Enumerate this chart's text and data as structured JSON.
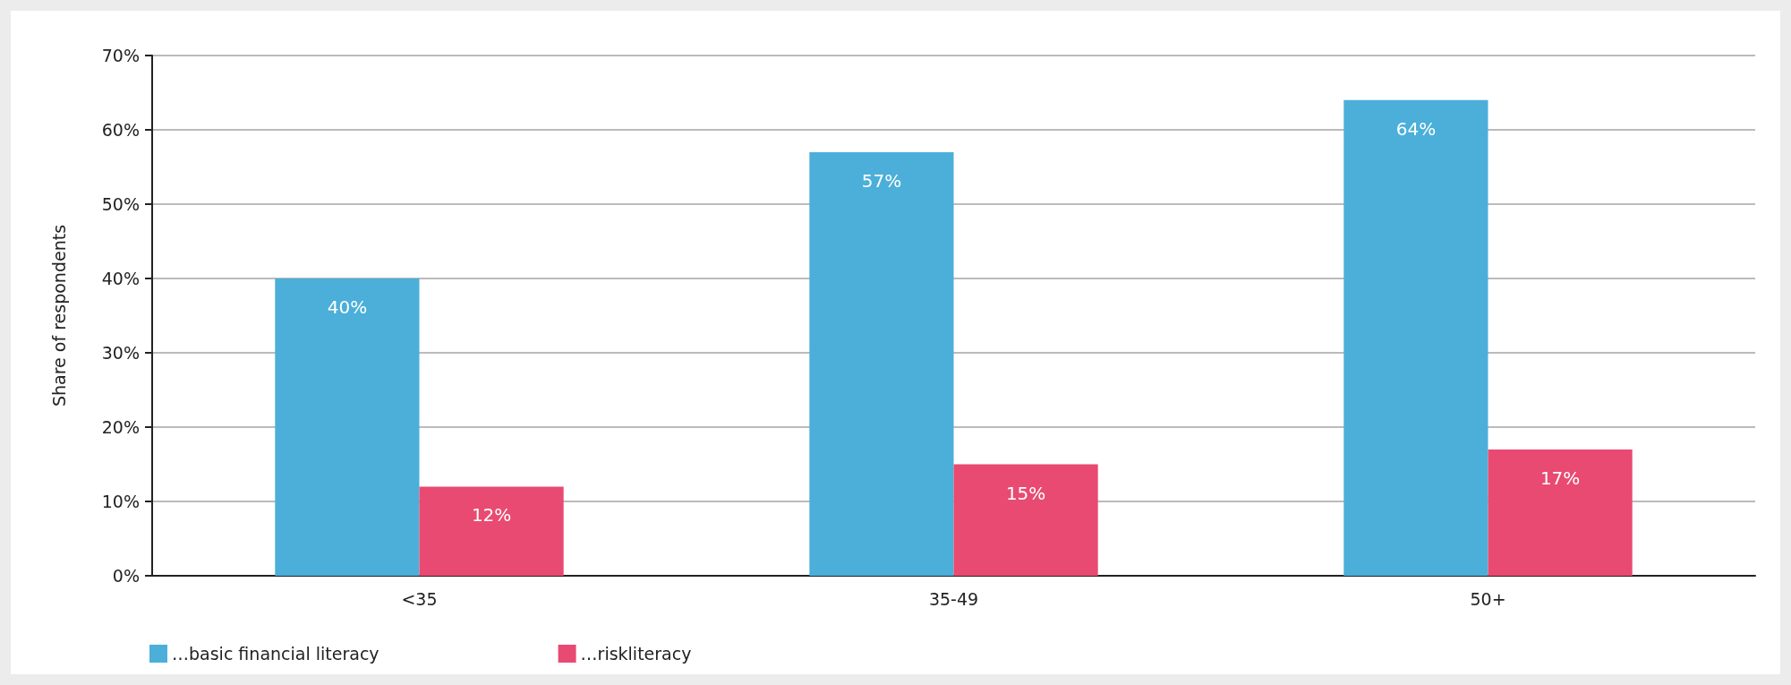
{
  "chart_data": {
    "type": "bar",
    "ylabel": "Share of respondents",
    "categories": [
      "<35",
      "35-49",
      "50+"
    ],
    "series": [
      {
        "name": "…basic financial literacy",
        "color": "#4bafd9",
        "values": [
          40,
          57,
          64
        ],
        "value_labels": [
          "40%",
          "57%",
          "64%"
        ]
      },
      {
        "name": "…riskliteracy",
        "color": "#e84a72",
        "values": [
          12,
          15,
          17
        ],
        "value_labels": [
          "12%",
          "15%",
          "17%"
        ]
      }
    ],
    "ylim": [
      0,
      70
    ],
    "yticks": [
      {
        "value": 0,
        "label": "0%"
      },
      {
        "value": 10,
        "label": "10%"
      },
      {
        "value": 20,
        "label": "20%"
      },
      {
        "value": 30,
        "label": "30%"
      },
      {
        "value": 40,
        "label": "40%"
      },
      {
        "value": 50,
        "label": "50%"
      },
      {
        "value": 60,
        "label": "60%"
      },
      {
        "value": 70,
        "label": "70%"
      }
    ],
    "grid": "y",
    "legend": "bottom left"
  }
}
